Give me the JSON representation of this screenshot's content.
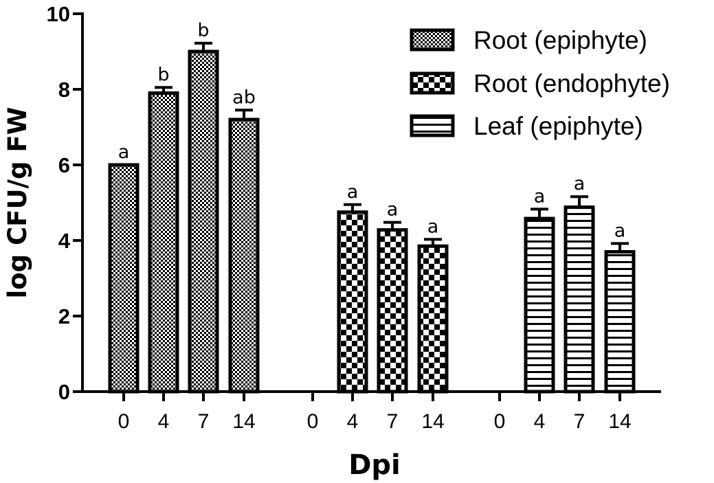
{
  "chart_data": {
    "type": "bar",
    "xlabel": "Dpi",
    "ylabel": "log CFU/g FW",
    "ylim": [
      0,
      10
    ],
    "yticks": [
      "0",
      "2",
      "4",
      "6",
      "8",
      "10"
    ],
    "grid": false,
    "legend_position": "top-right",
    "groups": [
      {
        "series": "Root (epiphyte)",
        "pattern": "fine-checker",
        "categories": [
          "0",
          "4",
          "7",
          "14"
        ],
        "values": [
          6.0,
          7.9,
          9.0,
          7.2
        ],
        "errors": [
          0.0,
          0.15,
          0.22,
          0.25
        ],
        "labels": [
          "a",
          "b",
          "b",
          "ab"
        ]
      },
      {
        "series": "Root (endophyte)",
        "pattern": "coarse-checker",
        "categories": [
          "0",
          "4",
          "7",
          "14"
        ],
        "values": [
          null,
          4.75,
          4.28,
          3.85
        ],
        "errors": [
          null,
          0.2,
          0.2,
          0.18
        ],
        "labels": [
          "",
          "a",
          "a",
          "a"
        ]
      },
      {
        "series": "Leaf (epiphyte)",
        "pattern": "horizontal-stripes",
        "categories": [
          "0",
          "4",
          "7",
          "14"
        ],
        "values": [
          null,
          4.58,
          4.88,
          3.7
        ],
        "errors": [
          null,
          0.25,
          0.28,
          0.22
        ],
        "labels": [
          "",
          "a",
          "a",
          "a"
        ]
      }
    ],
    "legend": [
      "Root (epiphyte)",
      "Root (endophyte)",
      "Leaf (epiphyte)"
    ]
  }
}
